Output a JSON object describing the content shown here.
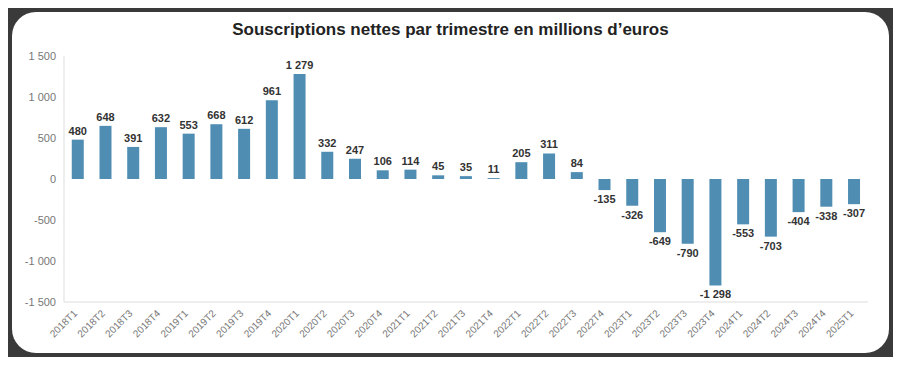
{
  "chart_data": {
    "type": "bar",
    "title": "Souscriptions nettes par trimestre en millions d’euros",
    "categories": [
      "2018T1",
      "2018T2",
      "2018T3",
      "2018T4",
      "2019T1",
      "2019T2",
      "2019T3",
      "2019T4",
      "2020T1",
      "2020T2",
      "2020T3",
      "2020T4",
      "2021T1",
      "2021T2",
      "2021T3",
      "2021T4",
      "2022T1",
      "2022T2",
      "2022T3",
      "2022T4",
      "2023T1",
      "2023T2",
      "2023T3",
      "2023T4",
      "2024T1",
      "2024T2",
      "2024T3",
      "2024T4",
      "2025T1"
    ],
    "values": [
      480,
      648,
      391,
      632,
      553,
      668,
      612,
      961,
      1279,
      332,
      247,
      106,
      114,
      45,
      35,
      11,
      205,
      311,
      84,
      -135,
      -326,
      -649,
      -790,
      -1298,
      -553,
      -703,
      -404,
      -338,
      -307
    ],
    "value_labels": [
      "480",
      "648",
      "391",
      "632",
      "553",
      "668",
      "612",
      "961",
      "1 279",
      "332",
      "247",
      "106",
      "114",
      "45",
      "35",
      "11",
      "205",
      "311",
      "84",
      "-135",
      "-326",
      "-649",
      "-790",
      "-1 298",
      "-553",
      "-703",
      "-404",
      "-338",
      "-307"
    ],
    "color": "#4f8db3",
    "ylim": [
      -1500,
      1500
    ],
    "yticks": [
      {
        "value": -1500,
        "label": "-1 500"
      },
      {
        "value": -1000,
        "label": "-1 000"
      },
      -500,
      0,
      500,
      {
        "value": 1000,
        "label": "1 000"
      },
      {
        "value": 1500,
        "label": "1 500"
      }
    ],
    "grid": false,
    "data_labels": true
  }
}
